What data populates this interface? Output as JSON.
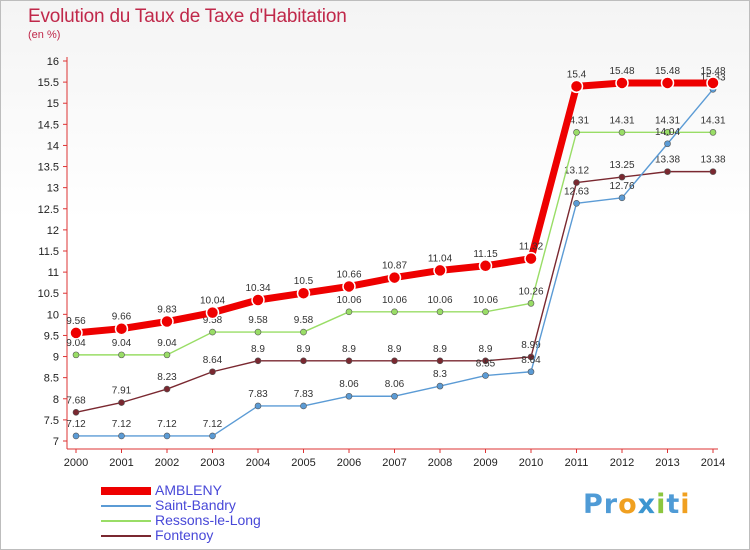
{
  "chart_data": {
    "type": "line",
    "title": "Evolution du Taux de Taxe d'Habitation",
    "unit_label": "(en %)",
    "x": [
      2000,
      2001,
      2002,
      2003,
      2004,
      2005,
      2006,
      2007,
      2008,
      2009,
      2010,
      2011,
      2012,
      2013,
      2014
    ],
    "ylim": [
      7,
      16
    ],
    "yticks": [
      7,
      7.5,
      8,
      8.5,
      9,
      9.5,
      10,
      10.5,
      11,
      11.5,
      12,
      12.5,
      13,
      13.5,
      14,
      14.5,
      15,
      15.5,
      16
    ],
    "grid": false,
    "legend_position": "bottom-left",
    "series": [
      {
        "name": "AMBLENY",
        "color": "#ee0000",
        "emphasis": true,
        "values": [
          9.56,
          9.66,
          9.83,
          10.04,
          10.34,
          10.5,
          10.66,
          10.87,
          11.04,
          11.15,
          11.32,
          15.4,
          15.48,
          15.48,
          15.48
        ],
        "labels": [
          "9.56",
          "9.66",
          "9.83",
          "10.04",
          "10.34",
          "10.5",
          "10.66",
          "10.87",
          "11.04",
          "11.15",
          "11.32",
          "15.4",
          "15.48",
          "15.48",
          "15.48"
        ]
      },
      {
        "name": "Saint-Bandry",
        "color": "#5b9bd5",
        "values": [
          7.12,
          7.12,
          7.12,
          7.12,
          7.83,
          7.83,
          8.06,
          8.06,
          8.3,
          8.55,
          8.64,
          12.63,
          12.76,
          14.04,
          15.33
        ],
        "labels": [
          "7.12",
          "7.12",
          "7.12",
          "7.12",
          "7.83",
          "7.83",
          "8.06",
          "8.06",
          "8.3",
          "8.55",
          "8.64",
          "12.63",
          "12.76",
          "14.04",
          "15.33"
        ]
      },
      {
        "name": "Ressons-le-Long",
        "color": "#99dd66",
        "values": [
          9.04,
          9.04,
          9.04,
          9.58,
          9.58,
          9.58,
          10.06,
          10.06,
          10.06,
          10.06,
          10.26,
          14.31,
          14.31,
          14.31,
          14.31
        ],
        "labels": [
          "9.04",
          "9.04",
          "9.04",
          "9.58",
          "9.58",
          "9.58",
          "10.06",
          "10.06",
          "10.06",
          "10.06",
          "10.26",
          "14.31",
          "14.31",
          "14.31",
          "14.31"
        ]
      },
      {
        "name": "Fontenoy",
        "color": "#7a2830",
        "values": [
          7.68,
          7.91,
          8.23,
          8.64,
          8.9,
          8.9,
          8.9,
          8.9,
          8.9,
          8.9,
          8.99,
          13.12,
          13.25,
          13.38,
          13.38
        ],
        "labels": [
          "7.68",
          "7.91",
          "8.23",
          "8.64",
          "8.9",
          "8.9",
          "8.9",
          "8.9",
          "8.9",
          "8.9",
          "8.99",
          "13.12",
          "13.25",
          "13.38",
          "13.38"
        ]
      }
    ]
  },
  "logo": {
    "parts": [
      {
        "text": "Pr",
        "color": "#4f9bd6"
      },
      {
        "text": "o",
        "color": "#f0a020"
      },
      {
        "text": "x",
        "color": "#3c96d0"
      },
      {
        "text": "i",
        "color": "#8cc63f"
      },
      {
        "text": "t",
        "color": "#4f9bd6"
      },
      {
        "text": "i",
        "color": "#f0a020"
      }
    ]
  }
}
